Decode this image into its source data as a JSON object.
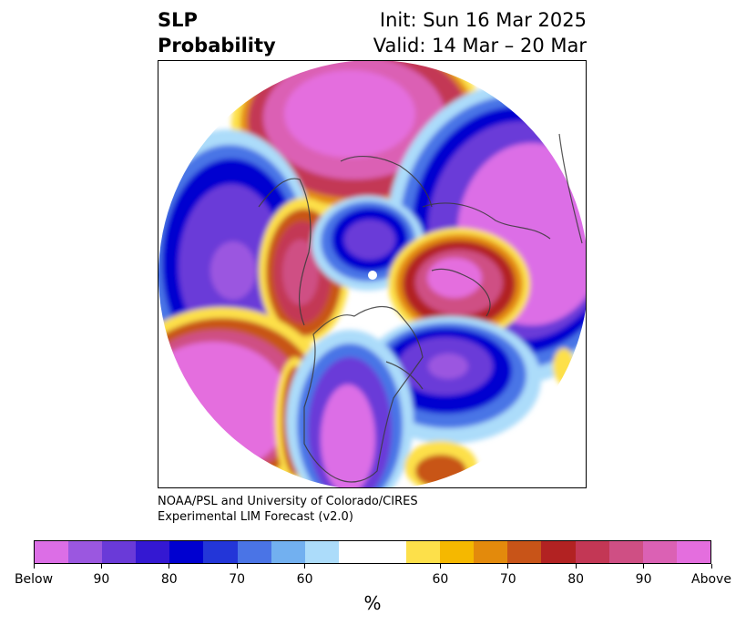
{
  "header": {
    "variable_line1": "SLP",
    "variable_line2": "Probability",
    "init": "Init: Sun 16 Mar 2025",
    "valid": "Valid: 14 Mar – 20 Mar"
  },
  "credit": {
    "line1": "NOAA/PSL and University of Colorado/CIRES",
    "line2": "Experimental LIM Forecast (v2.0)"
  },
  "colorbar": {
    "colors": [
      "#dc6ee6",
      "#9b57e0",
      "#6a3ad8",
      "#3418d2",
      "#0000d0",
      "#2336d8",
      "#4a74e6",
      "#72b0f0",
      "#acdcfa",
      "#ffffff",
      "#ffffff",
      "#fde04a",
      "#f5b800",
      "#e38a0c",
      "#c85418",
      "#b22222",
      "#c33755",
      "#cf4f84",
      "#db61b4",
      "#e46ede"
    ],
    "labels": [
      "Below",
      "90",
      "80",
      "70",
      "60",
      "60",
      "70",
      "80",
      "90",
      "Above"
    ],
    "unit": "%"
  },
  "map": {
    "projection": "north-polar-stereographic",
    "anomalies": [
      {
        "name": "north-pacific-low",
        "sign": "below",
        "strength": "80"
      },
      {
        "name": "arctic-central-low",
        "sign": "below",
        "strength": "80"
      },
      {
        "name": "eurasia-siberia-low",
        "sign": "below",
        "strength": "Below"
      },
      {
        "name": "north-atlantic-low",
        "sign": "below",
        "strength": "90"
      },
      {
        "name": "us-central-low",
        "sign": "below",
        "strength": "Below"
      },
      {
        "name": "east-asia-high",
        "sign": "above",
        "strength": "Above"
      },
      {
        "name": "bering-alaska-high",
        "sign": "above",
        "strength": "80"
      },
      {
        "name": "europe-scandinavia-high",
        "sign": "above",
        "strength": "Above"
      },
      {
        "name": "subtropical-pacific-high",
        "sign": "above",
        "strength": "Above"
      },
      {
        "name": "west-coast-high",
        "sign": "above",
        "strength": "80"
      },
      {
        "name": "subtropical-atlantic-high",
        "sign": "above",
        "strength": "80"
      }
    ]
  }
}
